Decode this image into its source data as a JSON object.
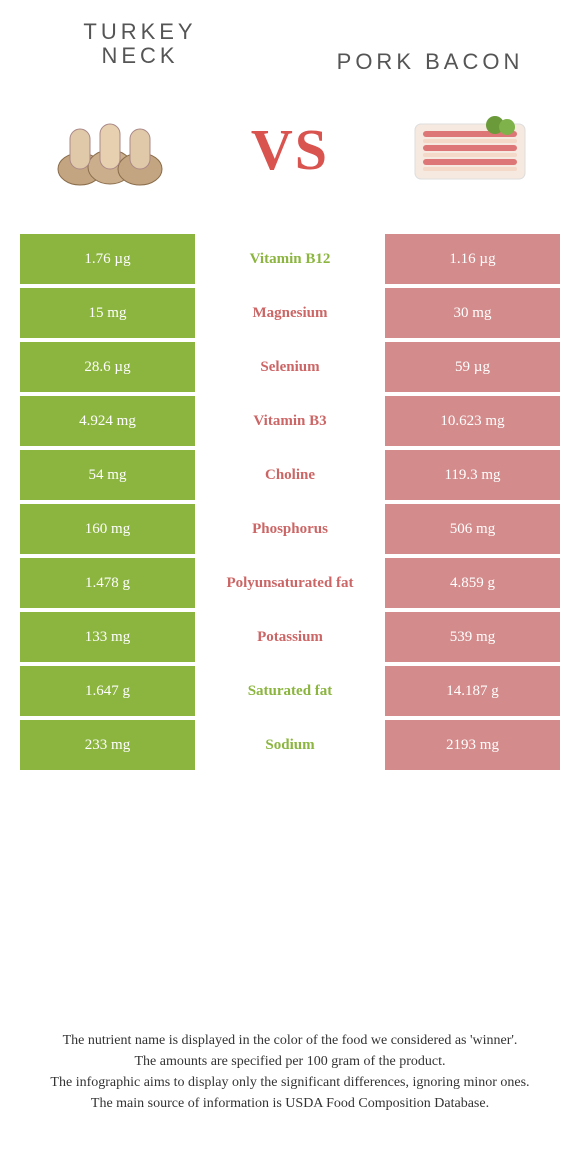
{
  "left_food": "TURKEY NECK",
  "right_food": "PORK BACON",
  "vs_label": "VS",
  "colors": {
    "left": "#8bb53f",
    "right": "#d38b8b",
    "left_winner_text": "#8bb53f",
    "right_winner_text": "#c66"
  },
  "rows": [
    {
      "nutrient": "Vitamin B12",
      "left": "1.76 µg",
      "right": "1.16 µg",
      "winner": "left"
    },
    {
      "nutrient": "Magnesium",
      "left": "15 mg",
      "right": "30 mg",
      "winner": "right"
    },
    {
      "nutrient": "Selenium",
      "left": "28.6 µg",
      "right": "59 µg",
      "winner": "right"
    },
    {
      "nutrient": "Vitamin B3",
      "left": "4.924 mg",
      "right": "10.623 mg",
      "winner": "right"
    },
    {
      "nutrient": "Choline",
      "left": "54 mg",
      "right": "119.3 mg",
      "winner": "right"
    },
    {
      "nutrient": "Phosphorus",
      "left": "160 mg",
      "right": "506 mg",
      "winner": "right"
    },
    {
      "nutrient": "Polyunsaturated fat",
      "left": "1.478 g",
      "right": "4.859 g",
      "winner": "right"
    },
    {
      "nutrient": "Potassium",
      "left": "133 mg",
      "right": "539 mg",
      "winner": "right"
    },
    {
      "nutrient": "Saturated fat",
      "left": "1.647 g",
      "right": "14.187 g",
      "winner": "left"
    },
    {
      "nutrient": "Sodium",
      "left": "233 mg",
      "right": "2193 mg",
      "winner": "left"
    }
  ],
  "footer": [
    "The nutrient name is displayed in the color of the food we considered as 'winner'.",
    "The amounts are specified per 100 gram of the product.",
    "The infographic aims to display only the significant differences, ignoring minor ones.",
    "The main source of information is USDA Food Composition Database."
  ]
}
